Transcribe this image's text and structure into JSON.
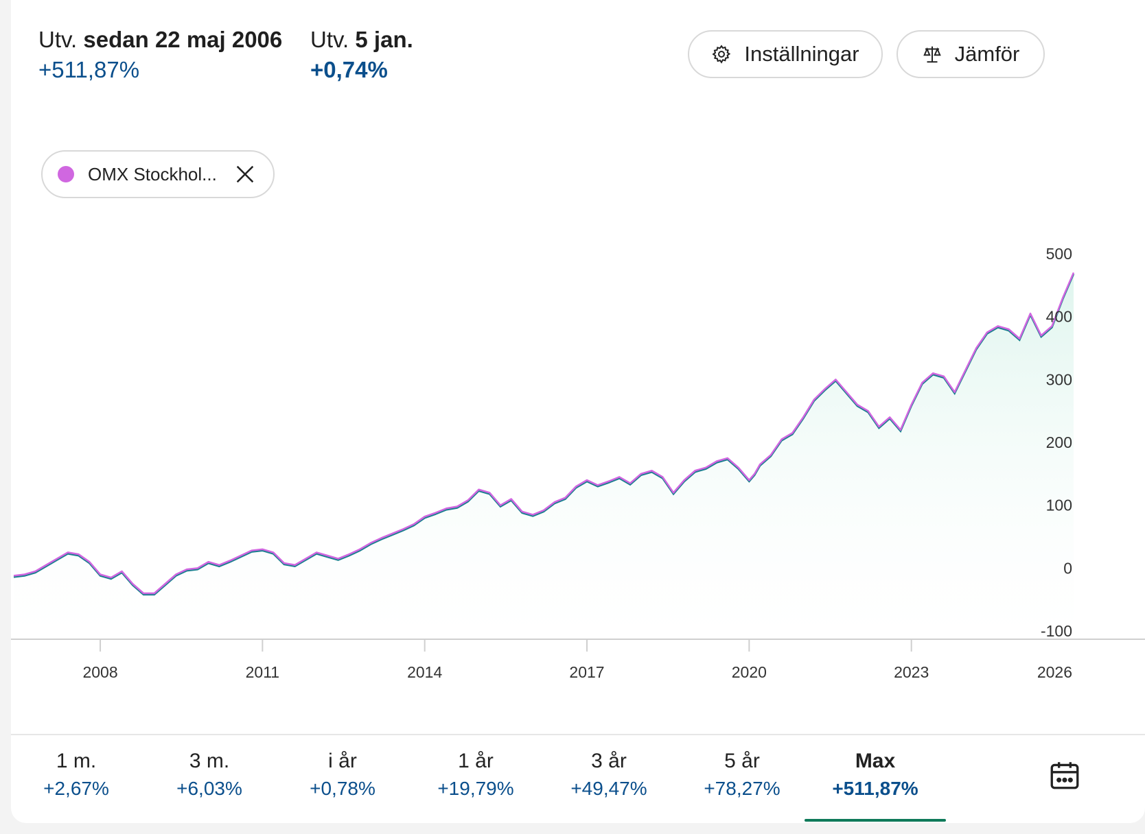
{
  "header": {
    "stat1": {
      "prefix": "Utv.",
      "bold": "sedan 22 maj 2006",
      "value": "+511,87%"
    },
    "stat2": {
      "prefix": "Utv.",
      "bold": "5 jan.",
      "value": "+0,74%"
    },
    "settings_label": "Inställningar",
    "compare_label": "Jämför"
  },
  "legend": {
    "label": "OMX Stockhol...",
    "dot_color": "#d067e0",
    "close_icon": "close-icon"
  },
  "colors": {
    "accent": "#0b4f8c",
    "line_primary": "#d067e0",
    "line_secondary": "#1a7f8f",
    "area_fill": "#e8f7f2",
    "active_underline": "#0f7a5a"
  },
  "chart_data": {
    "type": "line",
    "series": [
      {
        "name": "OMX Stockhol...",
        "x": [
          2006.4,
          2006.6,
          2006.8,
          2007.0,
          2007.2,
          2007.4,
          2007.6,
          2007.8,
          2008.0,
          2008.2,
          2008.4,
          2008.6,
          2008.8,
          2009.0,
          2009.2,
          2009.4,
          2009.6,
          2009.8,
          2010.0,
          2010.2,
          2010.4,
          2010.6,
          2010.8,
          2011.0,
          2011.2,
          2011.4,
          2011.6,
          2011.8,
          2012.0,
          2012.2,
          2012.4,
          2012.6,
          2012.8,
          2013.0,
          2013.2,
          2013.4,
          2013.6,
          2013.8,
          2014.0,
          2014.2,
          2014.4,
          2014.6,
          2014.8,
          2015.0,
          2015.2,
          2015.4,
          2015.6,
          2015.8,
          2016.0,
          2016.2,
          2016.4,
          2016.6,
          2016.8,
          2017.0,
          2017.2,
          2017.4,
          2017.6,
          2017.8,
          2018.0,
          2018.2,
          2018.4,
          2018.6,
          2018.8,
          2019.0,
          2019.2,
          2019.4,
          2019.6,
          2019.8,
          2020.0,
          2020.1,
          2020.2,
          2020.4,
          2020.6,
          2020.8,
          2021.0,
          2021.2,
          2021.4,
          2021.6,
          2021.8,
          2022.0,
          2022.2,
          2022.4,
          2022.6,
          2022.8,
          2023.0,
          2023.2,
          2023.4,
          2023.6,
          2023.8,
          2024.0,
          2024.2,
          2024.4,
          2024.6,
          2024.8,
          2025.0,
          2025.2,
          2025.4,
          2025.6,
          2025.8,
          2026.0
        ],
        "values": [
          -12,
          -10,
          -5,
          5,
          15,
          25,
          22,
          10,
          -10,
          -15,
          -5,
          -25,
          -40,
          -40,
          -25,
          -10,
          -2,
          0,
          10,
          5,
          12,
          20,
          28,
          30,
          25,
          8,
          5,
          15,
          25,
          20,
          15,
          22,
          30,
          40,
          48,
          55,
          62,
          70,
          82,
          88,
          95,
          98,
          108,
          125,
          120,
          100,
          110,
          90,
          85,
          92,
          105,
          112,
          130,
          140,
          132,
          138,
          145,
          135,
          150,
          155,
          145,
          120,
          140,
          155,
          160,
          170,
          175,
          160,
          140,
          150,
          165,
          180,
          205,
          215,
          240,
          268,
          285,
          300,
          280,
          260,
          250,
          225,
          240,
          220,
          260,
          295,
          310,
          305,
          280,
          315,
          350,
          375,
          385,
          380,
          365,
          405,
          370,
          385,
          430,
          470
        ]
      }
    ],
    "xlim": [
      2006.4,
      2026.0
    ],
    "ylim": [
      -100,
      500
    ],
    "yticks": [
      "500",
      "400",
      "300",
      "200",
      "100",
      "0",
      "-100"
    ],
    "ytick_values": [
      500,
      400,
      300,
      200,
      100,
      0,
      -100
    ],
    "xticks": [
      "2008",
      "2011",
      "2014",
      "2017",
      "2020",
      "2023",
      "2026"
    ],
    "xtick_values": [
      2008,
      2011,
      2014,
      2017,
      2020,
      2023,
      2026
    ],
    "grid": false
  },
  "periods": [
    {
      "label": "1 m.",
      "value": "+2,67%"
    },
    {
      "label": "3 m.",
      "value": "+6,03%"
    },
    {
      "label": "i år",
      "value": "+0,78%"
    },
    {
      "label": "1 år",
      "value": "+19,79%"
    },
    {
      "label": "3 år",
      "value": "+49,47%"
    },
    {
      "label": "5 år",
      "value": "+78,27%"
    },
    {
      "label": "Max",
      "value": "+511,87%",
      "active": true
    }
  ],
  "calendar_icon": "calendar-icon"
}
